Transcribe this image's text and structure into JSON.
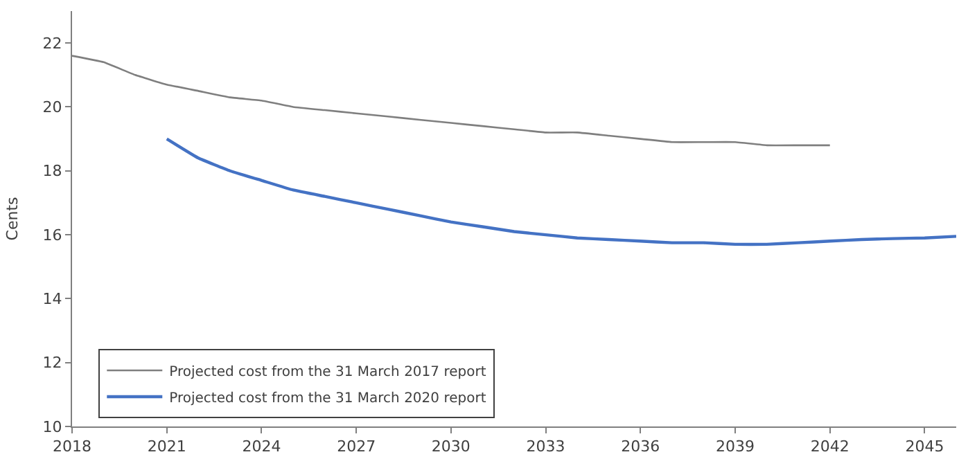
{
  "chart_data": {
    "type": "line",
    "ylabel": "Cents",
    "x": [
      2018,
      2019,
      2020,
      2021,
      2022,
      2023,
      2024,
      2025,
      2026,
      2027,
      2028,
      2029,
      2030,
      2031,
      2032,
      2033,
      2034,
      2035,
      2036,
      2037,
      2038,
      2039,
      2040,
      2041,
      2042,
      2043,
      2044,
      2045,
      2046
    ],
    "series": [
      {
        "name": "Projected cost from the 31 March 2017 report",
        "color": "#7f7f7f",
        "values": [
          21.6,
          21.4,
          21.0,
          20.7,
          20.5,
          20.3,
          20.2,
          20.0,
          19.9,
          19.8,
          19.7,
          19.6,
          19.5,
          19.4,
          19.3,
          19.2,
          19.2,
          19.1,
          19.0,
          18.9,
          18.9,
          18.9,
          18.8,
          18.8,
          18.8,
          null,
          null,
          null,
          null
        ]
      },
      {
        "name": "Projected cost from the 31 March 2020 report",
        "color": "#4472c4",
        "values": [
          null,
          null,
          null,
          19.0,
          18.4,
          18.0,
          17.7,
          17.4,
          17.2,
          17.0,
          16.8,
          16.6,
          16.4,
          16.25,
          16.1,
          16.0,
          15.9,
          15.85,
          15.8,
          15.75,
          15.75,
          15.7,
          15.7,
          15.75,
          15.8,
          15.85,
          15.88,
          15.9,
          15.95
        ]
      }
    ],
    "xlim": [
      2018,
      2046
    ],
    "xticks": [
      2018,
      2021,
      2024,
      2027,
      2030,
      2033,
      2036,
      2039,
      2042,
      2045
    ],
    "ylim": [
      10,
      23
    ],
    "yticks": [
      10,
      12,
      14,
      16,
      18,
      20,
      22
    ],
    "legend": "bottom left",
    "marker": "none",
    "line_style": "solid"
  }
}
